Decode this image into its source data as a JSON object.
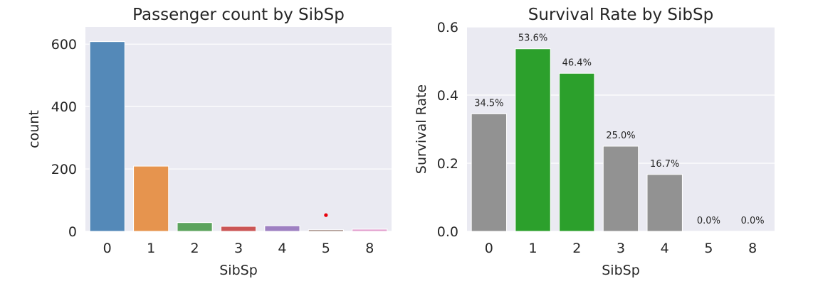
{
  "chart_data": [
    {
      "type": "bar",
      "title": "Passenger count by SibSp",
      "xlabel": "SibSp",
      "ylabel": "count",
      "categories": [
        "0",
        "1",
        "2",
        "3",
        "4",
        "5",
        "8"
      ],
      "values": [
        608,
        209,
        28,
        16,
        18,
        5,
        7
      ],
      "colors": [
        "#5489b8",
        "#e6944e",
        "#5ca35d",
        "#cb5656",
        "#9e80c2",
        "#94776e",
        "#e29ccc"
      ],
      "ylim": [
        0,
        655
      ],
      "yticks": [
        0,
        200,
        400,
        600
      ],
      "grid": true,
      "marker": {
        "x": "5",
        "y": 52,
        "color": "#e8000b"
      }
    },
    {
      "type": "bar",
      "title": "Survival Rate by SibSp",
      "xlabel": "SibSp",
      "ylabel": "Survival Rate",
      "categories": [
        "0",
        "1",
        "2",
        "3",
        "4",
        "5",
        "8"
      ],
      "values": [
        0.345,
        0.536,
        0.464,
        0.25,
        0.167,
        0.0,
        0.0
      ],
      "data_labels": [
        "34.5%",
        "53.6%",
        "46.4%",
        "25.0%",
        "16.7%",
        "0.0%",
        "0.0%"
      ],
      "colors": [
        "#929292",
        "#2ca02c",
        "#2ca02c",
        "#929292",
        "#929292",
        "#929292",
        "#929292"
      ],
      "ylim": [
        0,
        0.6
      ],
      "yticks": [
        0.0,
        0.2,
        0.4,
        0.6
      ],
      "ytick_labels": [
        "0.0",
        "0.2",
        "0.4",
        "0.6"
      ],
      "grid": true
    }
  ]
}
